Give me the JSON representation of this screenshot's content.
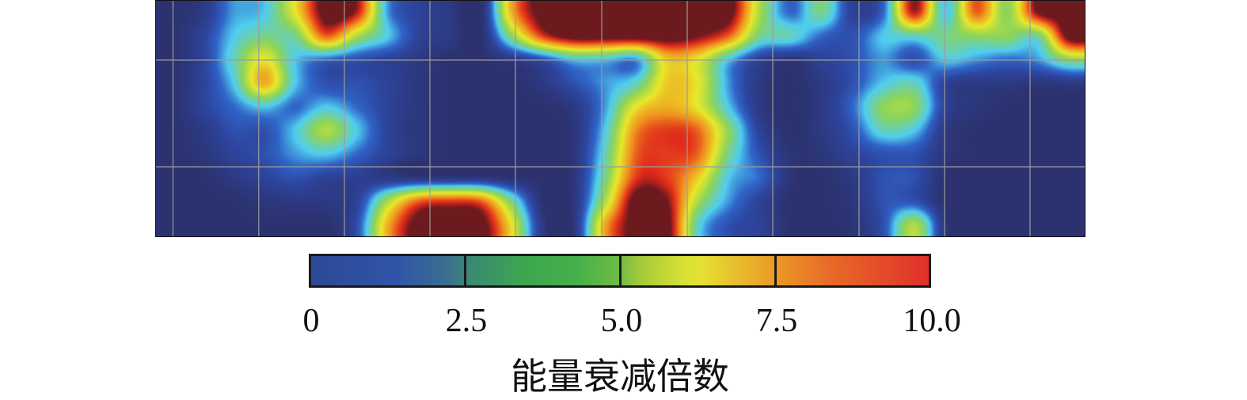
{
  "chart_data": {
    "type": "heatmap",
    "title": "",
    "colorbar": {
      "label": "能量衰减倍数",
      "range": [
        0,
        10.0
      ],
      "ticks": [
        "0",
        "2.5",
        "5.0",
        "7.5",
        "10.0"
      ],
      "colormap": "jet"
    },
    "grid": true,
    "rows": 10,
    "cols": 30,
    "values": [
      [
        0,
        0.5,
        2.5,
        3,
        6,
        10,
        9,
        2.5,
        1,
        0.5,
        0,
        7,
        10,
        10,
        10,
        10,
        10,
        10,
        10,
        5,
        2,
        4,
        1,
        2,
        9,
        3,
        8,
        4.5,
        9.5,
        10
      ],
      [
        0,
        1,
        3,
        4,
        4,
        8,
        5,
        3,
        1,
        0.5,
        0,
        4.5,
        8.5,
        10,
        10,
        10,
        10,
        9.5,
        8,
        4,
        3.5,
        2,
        1.5,
        3,
        3.5,
        4,
        4.5,
        4.5,
        4,
        10
      ],
      [
        0,
        1,
        3.5,
        6,
        3,
        2,
        1.5,
        1,
        0.5,
        0,
        0,
        0.5,
        1.5,
        3,
        3,
        2.5,
        6.5,
        6,
        3,
        1,
        0.3,
        1,
        1.5,
        2.5,
        1.5,
        3,
        2.5,
        2,
        2.5,
        4.5
      ],
      [
        0,
        1,
        3,
        7,
        3,
        1.5,
        1.5,
        1,
        0.3,
        0,
        0,
        0,
        0.5,
        1.5,
        2.5,
        3.5,
        6.5,
        6,
        2.5,
        0.5,
        0,
        0.5,
        1.5,
        3,
        3.5,
        1,
        0.5,
        0.5,
        0.3,
        0.5
      ],
      [
        0,
        1,
        2,
        3,
        2,
        3,
        2,
        1,
        0.3,
        0,
        0,
        0,
        0,
        0.5,
        2.5,
        6,
        7,
        6,
        3,
        0.5,
        0,
        0.5,
        2,
        4.5,
        4.5,
        1,
        0.3,
        0,
        0,
        0
      ],
      [
        0,
        0.5,
        1.5,
        1.5,
        3,
        5,
        3,
        1,
        0.3,
        0,
        0,
        0,
        0,
        0.3,
        3,
        7.5,
        8.5,
        8,
        4.5,
        1,
        0,
        0.5,
        1.5,
        3.5,
        3,
        0.5,
        0,
        0,
        0,
        0
      ],
      [
        0,
        0.3,
        1,
        1.5,
        2.5,
        3,
        2,
        1,
        0.3,
        0,
        0,
        0,
        0,
        0.3,
        3.5,
        8,
        8.5,
        8,
        4,
        1.5,
        0.2,
        0.3,
        1,
        1.5,
        1.5,
        0.3,
        0,
        0,
        0,
        0
      ],
      [
        0,
        0,
        0.5,
        1,
        1.5,
        1,
        0.8,
        0.5,
        0.3,
        0.3,
        0.3,
        0,
        0,
        0.3,
        4,
        8.5,
        8.5,
        6.5,
        3,
        2,
        0.2,
        0,
        0.5,
        1.5,
        1.5,
        0,
        0,
        0,
        0,
        0
      ],
      [
        0,
        0,
        0,
        0.3,
        0.5,
        0.5,
        1,
        5,
        8,
        8.5,
        8,
        4,
        0,
        0.3,
        5,
        10,
        9.5,
        5,
        2.5,
        1,
        0,
        0,
        0.3,
        1.5,
        1.5,
        0,
        0,
        0,
        0,
        0
      ],
      [
        0,
        0,
        0,
        0,
        0,
        0,
        1.5,
        7,
        10,
        10,
        10,
        6,
        0.5,
        0.3,
        7,
        10,
        10,
        3.5,
        1.5,
        1,
        0,
        0,
        0.2,
        1.5,
        5,
        0.3,
        0,
        0,
        0,
        0
      ]
    ]
  }
}
